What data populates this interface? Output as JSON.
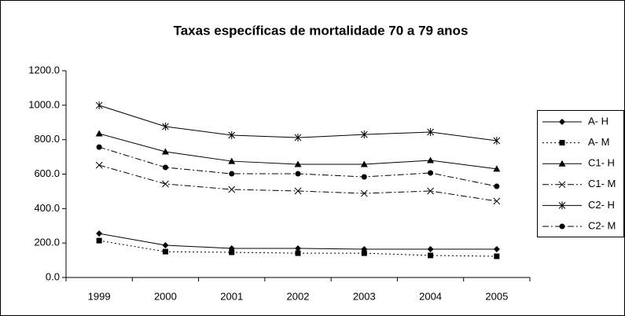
{
  "chart_data": {
    "type": "line",
    "title": "Taxas específicas de mortalidade 70 a 79 anos",
    "categories": [
      "1999",
      "2000",
      "2001",
      "2002",
      "2003",
      "2004",
      "2005"
    ],
    "series": [
      {
        "name": "A- H",
        "color": "#000000",
        "marker": "diamond",
        "dash": "solid",
        "values": [
          255,
          187,
          169,
          169,
          164,
          164,
          164
        ]
      },
      {
        "name": "A- M",
        "color": "#000000",
        "marker": "square",
        "dash": "dot",
        "values": [
          214,
          150,
          146,
          141,
          141,
          128,
          123
        ]
      },
      {
        "name": "C1- H",
        "color": "#000000",
        "marker": "triangle",
        "dash": "solid",
        "values": [
          835,
          730,
          675,
          657,
          657,
          680,
          630
        ]
      },
      {
        "name": "C1- M",
        "color": "#000000",
        "marker": "x",
        "dash": "dashdot",
        "values": [
          652,
          543,
          511,
          502,
          488,
          502,
          443
        ]
      },
      {
        "name": "C2- H",
        "color": "#000000",
        "marker": "star",
        "dash": "solid",
        "values": [
          999,
          876,
          826,
          812,
          830,
          844,
          794
        ]
      },
      {
        "name": "C2- M",
        "color": "#000000",
        "marker": "circle",
        "dash": "dashdot",
        "values": [
          757,
          639,
          602,
          602,
          584,
          607,
          529
        ]
      }
    ],
    "ylim": [
      0,
      1200
    ],
    "yticks": [
      {
        "value": 0,
        "label": "0.0"
      },
      {
        "value": 200,
        "label": "200.0"
      },
      {
        "value": 400,
        "label": "400.0"
      },
      {
        "value": 600,
        "label": "600.0"
      },
      {
        "value": 800,
        "label": "800.0"
      },
      {
        "value": 1000,
        "label": "1000.0"
      },
      {
        "value": 1200,
        "label": "1200.0"
      }
    ],
    "grid": false,
    "legend": "right"
  }
}
